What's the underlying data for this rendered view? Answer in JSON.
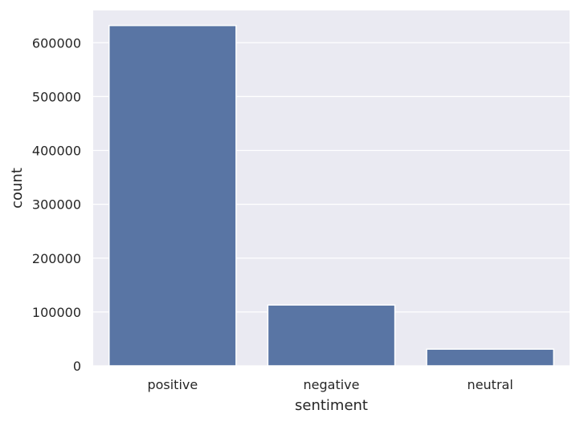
{
  "chart_data": {
    "type": "bar",
    "title": "",
    "xlabel": "sentiment",
    "ylabel": "count",
    "categories": [
      "positive",
      "negative",
      "neutral"
    ],
    "values": [
      632000,
      113000,
      31000
    ],
    "ylim": [
      0,
      660000
    ],
    "yticks": [
      0,
      100000,
      200000,
      300000,
      400000,
      500000,
      600000
    ],
    "ytick_labels": [
      "0",
      "100000",
      "200000",
      "300000",
      "400000",
      "500000",
      "600000"
    ],
    "grid": true,
    "legend": "none",
    "colors": {
      "bar": "#5975a4",
      "plot_background": "#eaeaf2",
      "grid": "#ffffff",
      "text": "#262626"
    }
  }
}
